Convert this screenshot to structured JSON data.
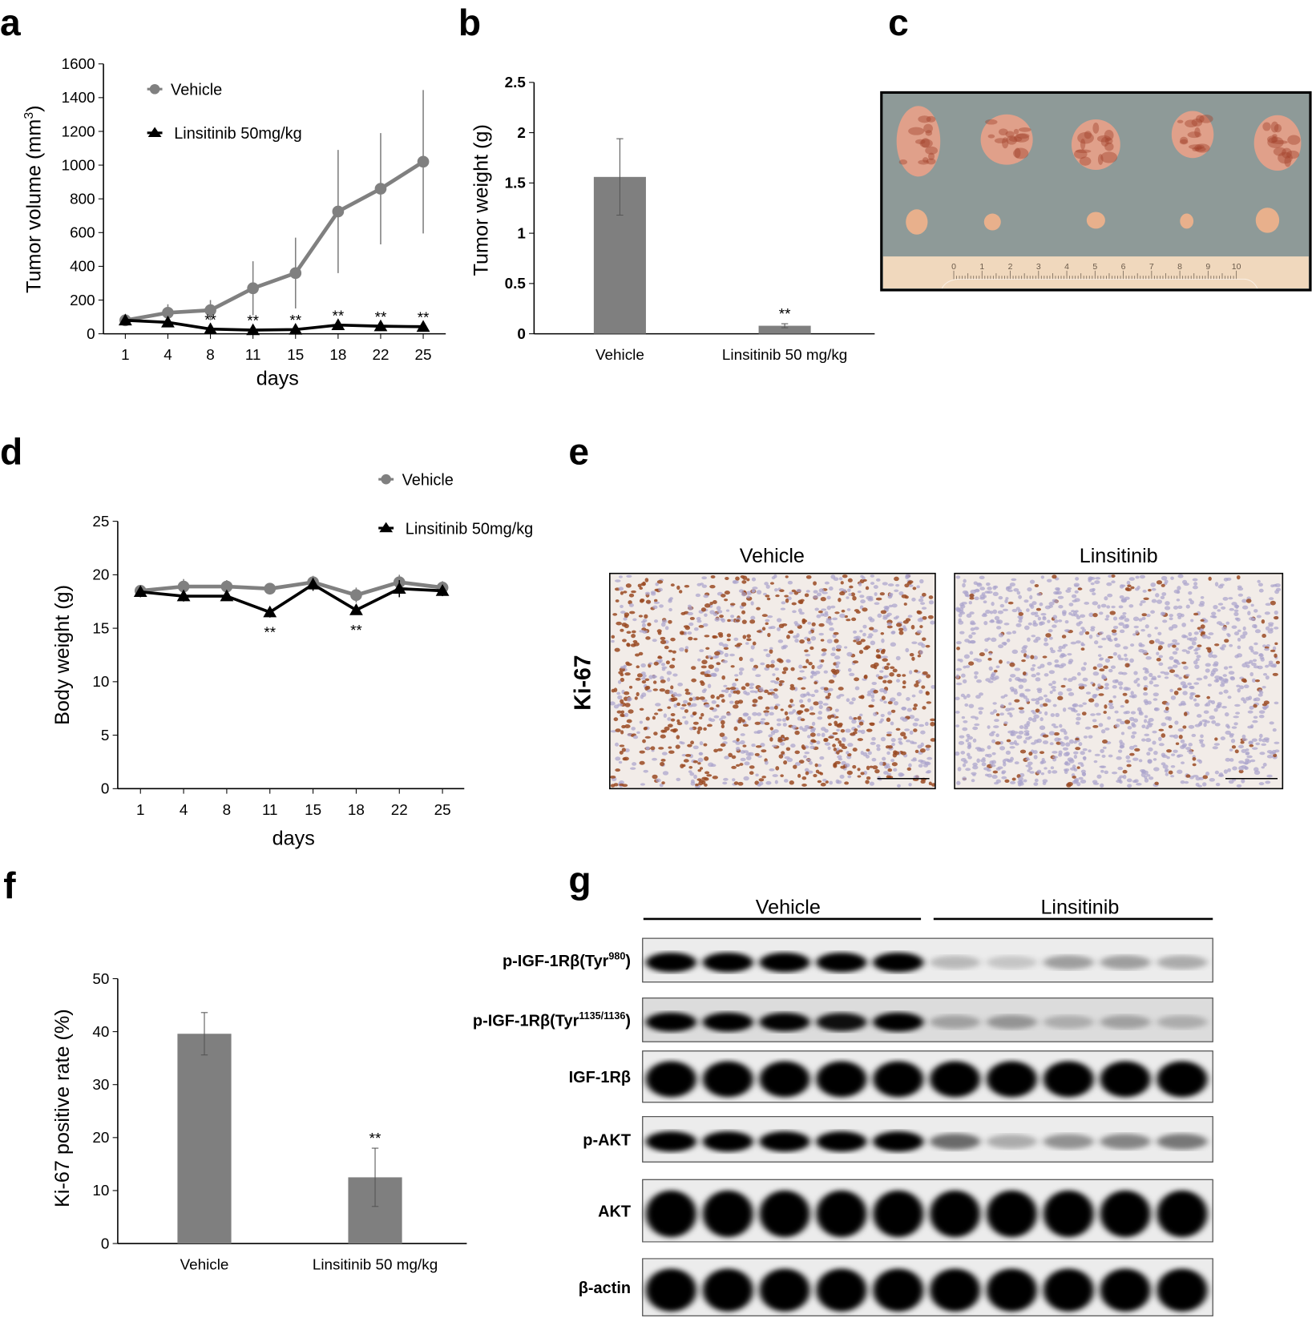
{
  "panels": {
    "a": "a",
    "b": "b",
    "c": "c",
    "d": "d",
    "e": "e",
    "f": "f",
    "g": "g"
  },
  "colors": {
    "vehicle": "#808080",
    "linsitinib": "#000000",
    "bar": "#7f7f7f",
    "tissue_bg": "#f2ece8",
    "nucleus_blue": "#a9a3cc",
    "nucleus_brown": "#9a4a22"
  },
  "chart_data": [
    {
      "id": "a",
      "type": "line",
      "xlabel": "days",
      "ylabel_main": "Tumor volume (mm",
      "ylabel_sup": "3",
      "ylabel_end": ")",
      "categories": [
        "1",
        "4",
        "8",
        "11",
        "15",
        "18",
        "22",
        "25"
      ],
      "ylim": [
        0,
        1600
      ],
      "yticks": [
        0,
        200,
        400,
        600,
        800,
        1000,
        1200,
        1400,
        1600
      ],
      "legend_placement": "top-left",
      "series": [
        {
          "name": "Vehicle",
          "marker": "circle",
          "color": "#808080",
          "values": [
            80,
            125,
            140,
            270,
            360,
            725,
            860,
            1020
          ],
          "errors": [
            5,
            50,
            60,
            160,
            210,
            365,
            330,
            425
          ]
        },
        {
          "name": "Linsitinib 50mg/kg",
          "marker": "triangle",
          "color": "#000000",
          "values": [
            80,
            68,
            28,
            22,
            25,
            52,
            45,
            42
          ],
          "errors": [
            5,
            5,
            5,
            5,
            5,
            5,
            5,
            5
          ]
        }
      ],
      "significance": [
        "",
        "",
        "**",
        "**",
        "**",
        "**",
        "**",
        "**"
      ]
    },
    {
      "id": "b",
      "type": "bar",
      "ylabel": "Tumor weight (g)",
      "categories": [
        "Vehicle",
        "Linsitinib 50 mg/kg"
      ],
      "values": [
        1.56,
        0.08
      ],
      "errors": [
        0.38,
        0.02
      ],
      "ylim": [
        0,
        2.5
      ],
      "yticks": [
        "0",
        "0.5",
        "1",
        "1.5",
        "2",
        "2.5"
      ],
      "significance": [
        "",
        "**"
      ]
    },
    {
      "id": "d",
      "type": "line",
      "xlabel": "days",
      "ylabel": "Body weight (g)",
      "categories": [
        "1",
        "4",
        "8",
        "11",
        "15",
        "18",
        "22",
        "25"
      ],
      "ylim": [
        0,
        25
      ],
      "yticks": [
        0,
        5,
        10,
        15,
        20,
        25
      ],
      "legend_placement": "top-right",
      "series": [
        {
          "name": "Vehicle",
          "marker": "circle",
          "color": "#808080",
          "values": [
            18.5,
            18.9,
            18.9,
            18.7,
            19.3,
            18.1,
            19.3,
            18.8
          ],
          "errors": [
            0.4,
            0.7,
            0.6,
            0.5,
            0.6,
            0.7,
            0.7,
            0.6
          ]
        },
        {
          "name": "Linsitinib 50mg/kg",
          "marker": "triangle",
          "color": "#000000",
          "values": [
            18.4,
            18.0,
            18.0,
            16.5,
            19.1,
            16.7,
            18.7,
            18.5
          ],
          "errors": [
            0.5,
            0.5,
            0.4,
            0.5,
            0.6,
            0.4,
            0.8,
            0.5
          ]
        }
      ],
      "significance": [
        "",
        "",
        "",
        "**",
        "",
        "**",
        "",
        ""
      ]
    },
    {
      "id": "f",
      "type": "bar",
      "ylabel": "Ki-67 positive rate (%)",
      "categories": [
        "Vehicle",
        "Linsitinib 50 mg/kg"
      ],
      "values": [
        39.6,
        12.5
      ],
      "errors": [
        4.0,
        5.5
      ],
      "ylim": [
        0,
        50
      ],
      "yticks": [
        0,
        10,
        20,
        30,
        40,
        50
      ],
      "significance": [
        "",
        "**"
      ]
    }
  ],
  "panel_c": {
    "ruler_numbers": [
      "0",
      "1",
      "2",
      "3",
      "4",
      "5",
      "6",
      "7",
      "8",
      "9",
      "10"
    ]
  },
  "panel_e": {
    "stain": "Ki-67",
    "groups": [
      "Vehicle",
      "Linsitinib"
    ]
  },
  "panel_g": {
    "groups": [
      "Vehicle",
      "Linsitinib"
    ],
    "rows": [
      {
        "main": "p-IGF-1Rβ(Tyr",
        "sup": "980",
        "end": ")"
      },
      {
        "main": "p-IGF-1Rβ(Tyr",
        "sup": "1135/1136",
        "end": ")"
      },
      {
        "main": "IGF-1Rβ",
        "sup": "",
        "end": ""
      },
      {
        "main": "p-AKT",
        "sup": "",
        "end": ""
      },
      {
        "main": "AKT",
        "sup": "",
        "end": ""
      },
      {
        "main": "β-actin",
        "sup": "",
        "end": ""
      }
    ]
  }
}
